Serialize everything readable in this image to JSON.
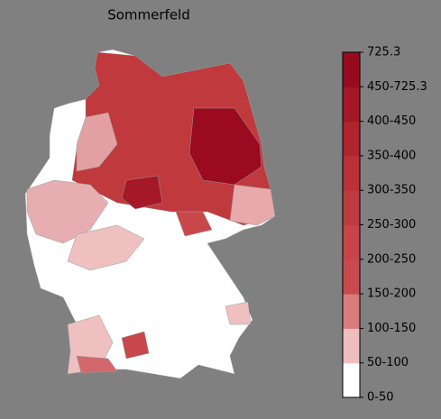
{
  "title": "Sommerfeld",
  "colorbar": {
    "labels": [
      "0-50",
      "50-100",
      "100-150",
      "150-200",
      "200-250",
      "250-300",
      "300-350",
      "350-400",
      "400-450",
      "450-725.3",
      "725.3"
    ],
    "colors": [
      "#ffffff",
      "#efbdbd",
      "#d97c7e",
      "#c94a4e",
      "#c6444a",
      "#bf3a40",
      "#b93037",
      "#b0242e",
      "#a51726",
      "#980b1f"
    ]
  }
}
